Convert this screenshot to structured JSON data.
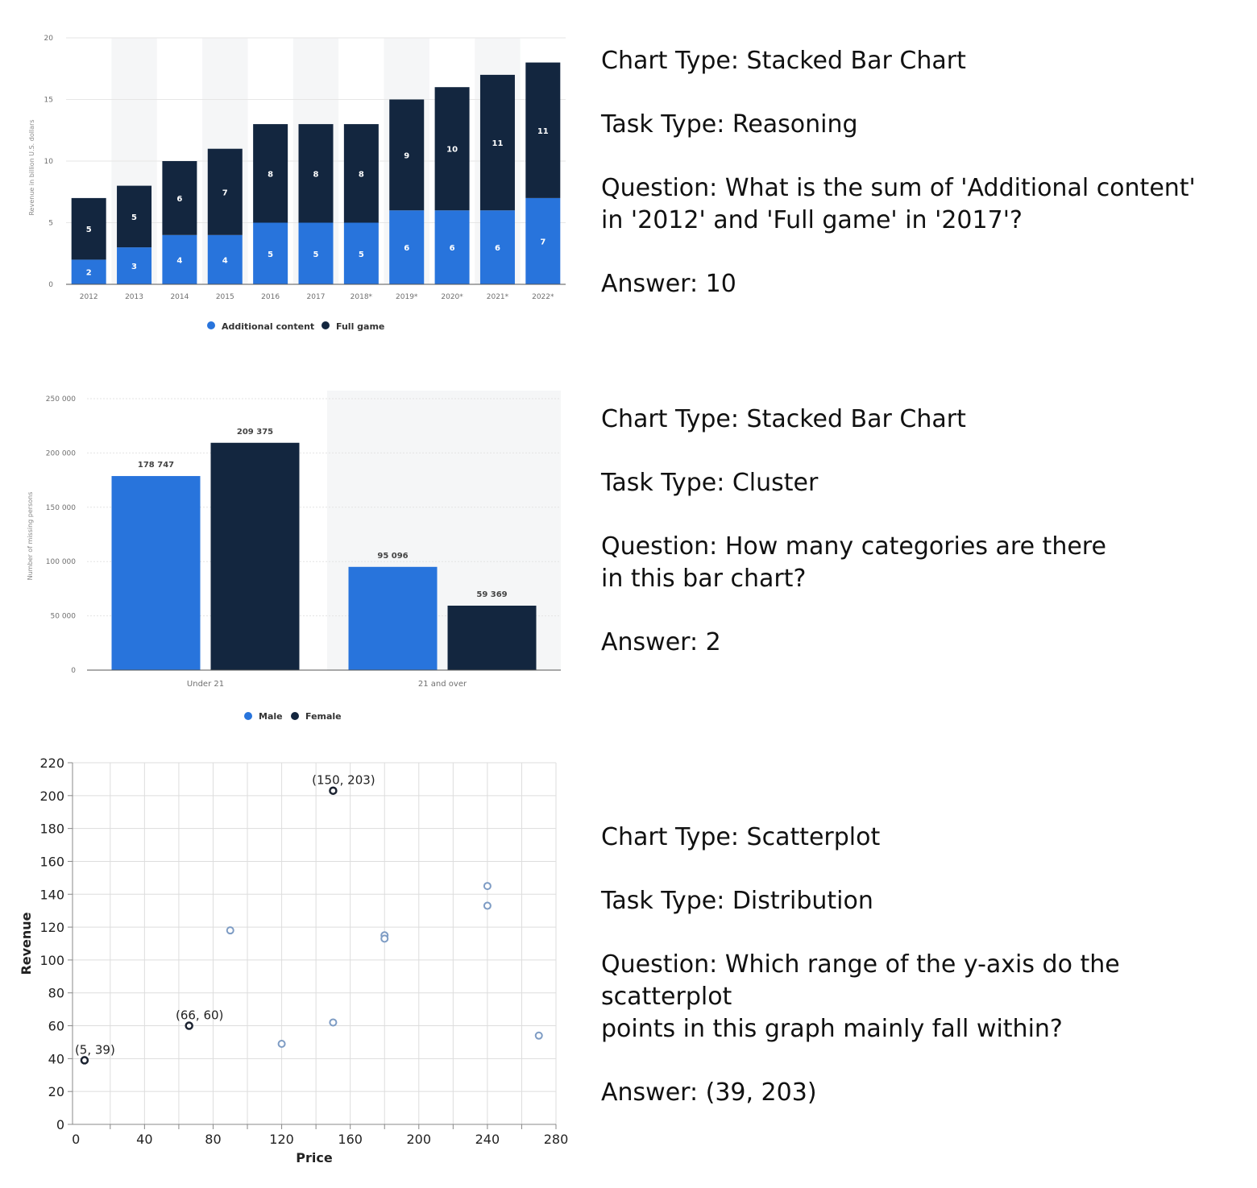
{
  "colors": {
    "blue": "#2874dc",
    "navy": "#13263f",
    "grid": "#d9d9d9",
    "axis_text": "#6f6f6f",
    "scatter_light": "#7e9cc4",
    "scatter_dark": "#1b2230"
  },
  "panels": [
    {
      "qa": {
        "chart_type": "Chart Type: Stacked Bar Chart",
        "task_type": "Task Type: Reasoning",
        "question": "Question: What is the sum of 'Additional content'\n in '2012' and 'Full game' in '2017'?",
        "answer": "Answer: 10"
      }
    },
    {
      "qa": {
        "chart_type": "Chart Type: Stacked Bar Chart",
        "task_type": "Task Type: Cluster",
        "question": "Question: How many categories are there\n in this bar chart?",
        "answer": "Answer: 2"
      }
    },
    {
      "qa": {
        "chart_type": "Chart Type: Scatterplot",
        "task_type": "Task Type: Distribution",
        "question": "Question: Which range of the y-axis do the scatterplot\npoints in this graph mainly fall within?",
        "answer": "Answer: (39, 203)"
      }
    }
  ],
  "chart_data": [
    {
      "type": "bar",
      "stacked": true,
      "categories": [
        "2012",
        "2013",
        "2014",
        "2015",
        "2016",
        "2017",
        "2018*",
        "2019*",
        "2020*",
        "2021*",
        "2022*"
      ],
      "series": [
        {
          "name": "Additional content",
          "values": [
            2,
            3,
            4,
            4,
            5,
            5,
            5,
            6,
            6,
            6,
            7
          ],
          "color": "#2874dc"
        },
        {
          "name": "Full game",
          "values": [
            5,
            5,
            6,
            7,
            8,
            8,
            8,
            9,
            10,
            11,
            11
          ],
          "color": "#13263f"
        }
      ],
      "ylabel": "Revenue in billion U.S. dollars",
      "ylim": [
        0,
        20
      ],
      "yticks": [
        0,
        5,
        10,
        15,
        20
      ],
      "legend": "bottom-center",
      "grid": true
    },
    {
      "type": "bar",
      "categories": [
        "Under 21",
        "21 and over"
      ],
      "series": [
        {
          "name": "Male",
          "values": [
            178747,
            95096
          ],
          "labels": [
            "178 747",
            "95 096"
          ],
          "color": "#2874dc"
        },
        {
          "name": "Female",
          "values": [
            209375,
            59369
          ],
          "labels": [
            "209 375",
            "59 369"
          ],
          "color": "#13263f"
        }
      ],
      "ylabel": "Number of missing persons",
      "ylim": [
        0,
        250000
      ],
      "yticks": [
        0,
        50000,
        100000,
        150000,
        200000,
        250000
      ],
      "ytick_labels": [
        "0",
        "50 000",
        "100 000",
        "150 000",
        "200 000",
        "250 000"
      ],
      "legend": "bottom-center",
      "grid": true
    },
    {
      "type": "scatter",
      "xlabel": "Price",
      "ylabel": "Revenue",
      "xlim": [
        -2,
        280
      ],
      "ylim": [
        0,
        220
      ],
      "xticks": [
        0,
        40,
        80,
        120,
        160,
        200,
        240,
        280
      ],
      "yticks": [
        0,
        20,
        40,
        60,
        80,
        100,
        120,
        140,
        160,
        180,
        200,
        220
      ],
      "grid": true,
      "points": [
        {
          "x": 5,
          "y": 39,
          "highlight": true,
          "label": "(5, 39)"
        },
        {
          "x": 66,
          "y": 60,
          "highlight": true,
          "label": "(66, 60)"
        },
        {
          "x": 150,
          "y": 203,
          "highlight": true,
          "label": "(150, 203)"
        },
        {
          "x": 90,
          "y": 118,
          "highlight": false
        },
        {
          "x": 120,
          "y": 49,
          "highlight": false
        },
        {
          "x": 150,
          "y": 62,
          "highlight": false
        },
        {
          "x": 180,
          "y": 115,
          "highlight": false
        },
        {
          "x": 180,
          "y": 113,
          "highlight": false
        },
        {
          "x": 240,
          "y": 145,
          "highlight": false
        },
        {
          "x": 240,
          "y": 133,
          "highlight": false
        },
        {
          "x": 270,
          "y": 54,
          "highlight": false
        }
      ]
    }
  ]
}
